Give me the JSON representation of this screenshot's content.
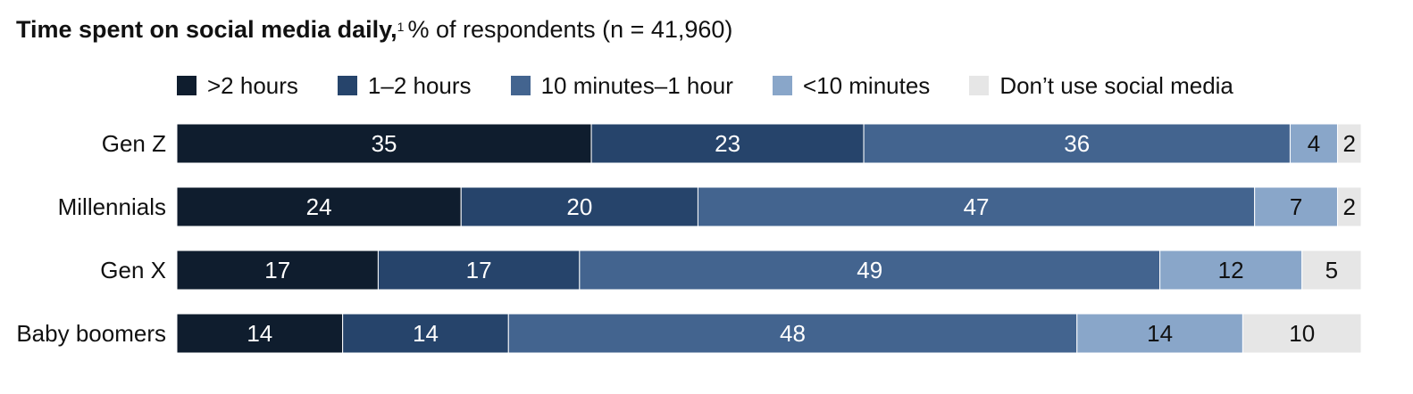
{
  "chart_data": {
    "type": "bar",
    "orientation": "horizontal",
    "stacked": true,
    "title": "Time spent on social media daily,",
    "title_footnote": "1",
    "subtitle": "% of respondents (n = 41,960)",
    "categories": [
      "Gen Z",
      "Millennials",
      "Gen X",
      "Baby boomers"
    ],
    "series": [
      {
        "name": ">2 hours",
        "color": "#0f1d2e",
        "values": [
          35,
          24,
          17,
          14
        ]
      },
      {
        "name": "1–2 hours",
        "color": "#26446b",
        "values": [
          23,
          20,
          17,
          14
        ]
      },
      {
        "name": "10 minutes–1 hour",
        "color": "#43648f",
        "values": [
          36,
          47,
          49,
          48
        ]
      },
      {
        "name": "<10 minutes",
        "color": "#89a6c9",
        "values": [
          4,
          7,
          12,
          14
        ]
      },
      {
        "name": "Don’t use social media",
        "color": "#e6e6e6",
        "values": [
          2,
          2,
          5,
          10
        ]
      }
    ],
    "legend_position": "top",
    "grid": false
  }
}
